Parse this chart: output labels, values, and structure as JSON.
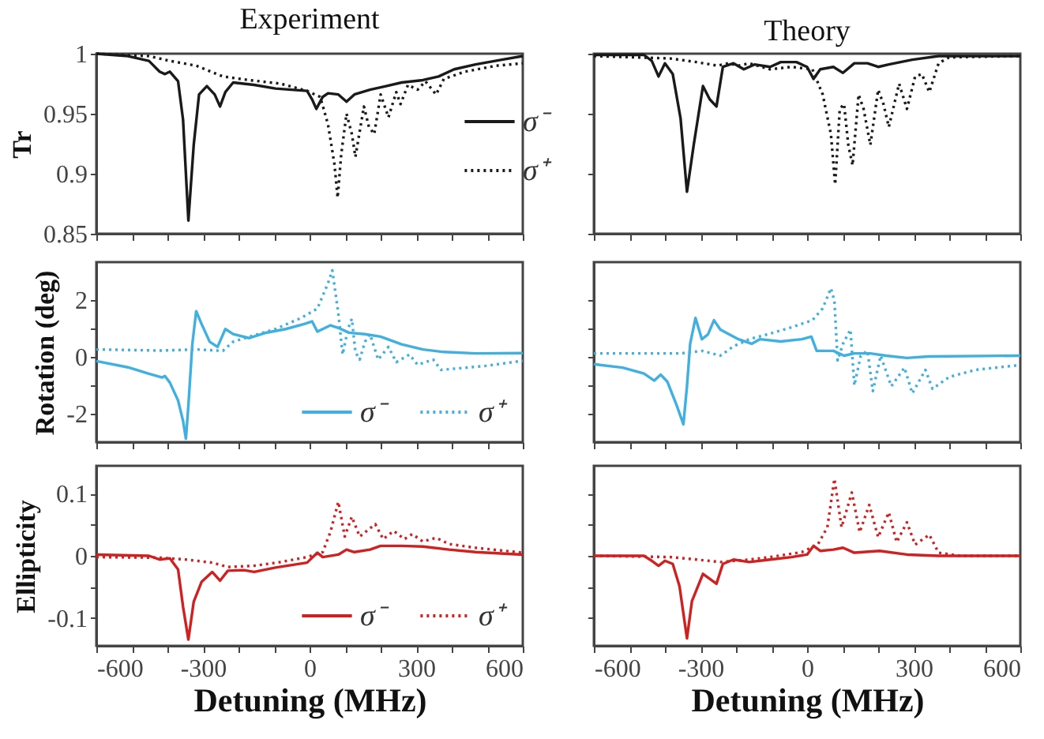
{
  "chart_data": [
    {
      "type": "line",
      "title": "Experiment",
      "ylabel": "Tr",
      "xlim": [
        -600,
        600
      ],
      "xticks": [
        -600,
        {
          "value": -500,
          "label": null
        },
        {
          "value": -400,
          "label": null
        },
        -300,
        {
          "value": -200,
          "label": null
        },
        {
          "value": -100,
          "label": null
        },
        0,
        {
          "value": 100,
          "label": null
        },
        {
          "value": 200,
          "label": null
        },
        300,
        {
          "value": 400,
          "label": null
        },
        {
          "value": 500,
          "label": null
        },
        600
      ],
      "ylim": [
        0.85,
        1
      ],
      "yticks": [
        0.85,
        0.9,
        0.95,
        1
      ],
      "tick_labels": "y",
      "legend": "right",
      "series": [
        {
          "name": "σ⁻",
          "color": "#1a1a1a",
          "line_style": "solid",
          "x": [
            -600,
            -511,
            -452,
            -422,
            -407,
            -393,
            -370,
            -356,
            -341,
            -326,
            -311,
            -289,
            -267,
            -252,
            -237,
            -215,
            -156,
            -96,
            -7,
            7,
            19,
            37,
            52,
            81,
            104,
            126,
            170,
            215,
            259,
            319,
            363,
            407,
            467,
            541,
            600
          ],
          "values": [
            1.0,
            0.998,
            0.994,
            0.985,
            0.983,
            0.985,
            0.977,
            0.945,
            0.861,
            0.924,
            0.966,
            0.973,
            0.966,
            0.956,
            0.968,
            0.976,
            0.974,
            0.971,
            0.969,
            0.962,
            0.954,
            0.964,
            0.967,
            0.966,
            0.96,
            0.966,
            0.97,
            0.973,
            0.976,
            0.978,
            0.981,
            0.987,
            0.991,
            0.995,
            0.998
          ]
        },
        {
          "name": "σ⁺",
          "color": "#1a1a1a",
          "line_style": "dotted",
          "x": [
            -600,
            -452,
            -393,
            -319,
            -244,
            -170,
            -81,
            -7,
            30,
            52,
            70,
            79,
            89,
            104,
            119,
            129,
            153,
            167,
            182,
            200,
            222,
            244,
            256,
            277,
            304,
            326,
            356,
            378,
            437,
            526,
            600
          ],
          "values": [
            1.0,
            0.998,
            0.994,
            0.99,
            0.981,
            0.978,
            0.975,
            0.969,
            0.964,
            0.941,
            0.908,
            0.88,
            0.916,
            0.95,
            0.933,
            0.914,
            0.956,
            0.939,
            0.933,
            0.966,
            0.947,
            0.968,
            0.958,
            0.974,
            0.97,
            0.977,
            0.966,
            0.979,
            0.985,
            0.99,
            0.992
          ]
        }
      ]
    },
    {
      "type": "line",
      "title": "Theory",
      "xlim": [
        -600,
        600
      ],
      "xticks": [
        -600,
        {
          "value": -500,
          "label": null
        },
        {
          "value": -400,
          "label": null
        },
        -300,
        {
          "value": -200,
          "label": null
        },
        {
          "value": -100,
          "label": null
        },
        0,
        {
          "value": 100,
          "label": null
        },
        {
          "value": 200,
          "label": null
        },
        300,
        {
          "value": 400,
          "label": null
        },
        {
          "value": 500,
          "label": null
        },
        600
      ],
      "ylim": [
        0.85,
        1
      ],
      "yticks": [
        0.85,
        0.9,
        0.95,
        1
      ],
      "tick_labels": false,
      "series": [
        {
          "color": "#1a1a1a",
          "line_style": "solid",
          "x": [
            -600,
            -459,
            -437,
            -418,
            -400,
            -378,
            -356,
            -338,
            -319,
            -293,
            -274,
            -255,
            -237,
            -207,
            -178,
            -148,
            -104,
            -74,
            -30,
            0,
            18,
            37,
            74,
            101,
            133,
            170,
            200,
            230,
            296,
            370,
            600
          ],
          "values": [
            0.999,
            0.999,
            0.994,
            0.981,
            0.992,
            0.983,
            0.946,
            0.885,
            0.924,
            0.973,
            0.962,
            0.956,
            0.989,
            0.992,
            0.987,
            0.991,
            0.989,
            0.993,
            0.993,
            0.989,
            0.979,
            0.987,
            0.989,
            0.984,
            0.992,
            0.992,
            0.989,
            0.991,
            0.995,
            0.998,
            0.998
          ]
        },
        {
          "color": "#1a1a1a",
          "line_style": "dotted",
          "x": [
            -600,
            -385,
            -311,
            -252,
            -222,
            -193,
            -163,
            -104,
            -44,
            15,
            44,
            67,
            79,
            92,
            104,
            116,
            128,
            145,
            159,
            178,
            200,
            215,
            230,
            259,
            281,
            304,
            323,
            344,
            370,
            400,
            600
          ],
          "values": [
            0.998,
            0.996,
            0.993,
            0.99,
            0.992,
            0.99,
            0.992,
            0.987,
            0.989,
            0.987,
            0.966,
            0.933,
            0.891,
            0.954,
            0.958,
            0.924,
            0.907,
            0.966,
            0.954,
            0.924,
            0.97,
            0.958,
            0.939,
            0.975,
            0.954,
            0.981,
            0.983,
            0.968,
            0.992,
            0.997,
            0.998
          ]
        }
      ]
    },
    {
      "type": "line",
      "ylabel": "Rotation (deg)",
      "xlim": [
        -600,
        600
      ],
      "xticks": [
        -600,
        {
          "value": -500,
          "label": null
        },
        {
          "value": -400,
          "label": null
        },
        -300,
        {
          "value": -200,
          "label": null
        },
        {
          "value": -100,
          "label": null
        },
        0,
        {
          "value": 100,
          "label": null
        },
        {
          "value": 200,
          "label": null
        },
        300,
        {
          "value": 400,
          "label": null
        },
        {
          "value": 500,
          "label": null
        },
        600
      ],
      "ylim": [
        -3,
        3.35
      ],
      "yticks": [
        -2,
        {
          "value": -1,
          "label": null
        },
        0,
        {
          "value": 1,
          "label": null
        },
        2
      ],
      "tick_labels": "y",
      "legend": "bottom right",
      "series": [
        {
          "name": "σ⁻",
          "color": "#3fb0e0",
          "line_style": "solid",
          "x": [
            -600,
            -511,
            -452,
            -415,
            -407,
            -393,
            -370,
            -356,
            -348,
            -341,
            -330,
            -319,
            -304,
            -281,
            -259,
            -237,
            -215,
            -170,
            -126,
            -67,
            -15,
            7,
            22,
            37,
            59,
            81,
            111,
            156,
            200,
            259,
            319,
            378,
            467,
            600
          ],
          "values": [
            -0.14,
            -0.36,
            -0.59,
            -0.72,
            -0.67,
            -0.9,
            -1.53,
            -2.25,
            -2.88,
            -1.71,
            0.45,
            1.62,
            1.17,
            0.54,
            0.36,
            0.99,
            0.81,
            0.67,
            0.85,
            0.99,
            1.17,
            1.26,
            0.9,
            0.99,
            1.12,
            1.03,
            0.86,
            0.81,
            0.72,
            0.45,
            0.27,
            0.18,
            0.13,
            0.14
          ]
        },
        {
          "name": "σ⁺",
          "color": "#3fb0e0",
          "line_style": "dotted",
          "x": [
            -600,
            -422,
            -319,
            -244,
            -215,
            -170,
            -96,
            -22,
            22,
            52,
            64,
            81,
            93,
            108,
            119,
            129,
            141,
            156,
            170,
            193,
            222,
            244,
            281,
            304,
            348,
            370,
            407,
            496,
            600
          ],
          "values": [
            0.27,
            0.23,
            0.27,
            0.22,
            0.54,
            0.72,
            0.99,
            1.39,
            1.71,
            2.61,
            3.06,
            1.53,
            0.09,
            0.99,
            1.35,
            0.18,
            -0.09,
            0.54,
            0.81,
            -0.09,
            0.36,
            -0.18,
            0.09,
            -0.27,
            -0.09,
            -0.45,
            -0.41,
            -0.31,
            -0.13
          ]
        }
      ]
    },
    {
      "type": "line",
      "xlim": [
        -600,
        600
      ],
      "xticks": [
        -600,
        {
          "value": -500,
          "label": null
        },
        {
          "value": -400,
          "label": null
        },
        -300,
        {
          "value": -200,
          "label": null
        },
        {
          "value": -100,
          "label": null
        },
        0,
        {
          "value": 100,
          "label": null
        },
        {
          "value": 200,
          "label": null
        },
        300,
        {
          "value": 400,
          "label": null
        },
        {
          "value": 500,
          "label": null
        },
        600
      ],
      "ylim": [
        -3,
        3.35
      ],
      "yticks": [
        -2,
        {
          "value": -1,
          "label": null
        },
        0,
        {
          "value": 1,
          "label": null
        },
        2
      ],
      "tick_labels": false,
      "series": [
        {
          "color": "#3fb0e0",
          "line_style": "solid",
          "x": [
            -600,
            -519,
            -459,
            -430,
            -412,
            -393,
            -367,
            -348,
            -338,
            -329,
            -314,
            -296,
            -279,
            -262,
            -244,
            -193,
            -156,
            -133,
            -74,
            -15,
            12,
            27,
            74,
            104,
            133,
            178,
            222,
            281,
            341,
            600
          ],
          "values": [
            -0.25,
            -0.37,
            -0.58,
            -0.83,
            -0.62,
            -0.87,
            -1.7,
            -2.37,
            -1.03,
            0.47,
            1.38,
            0.63,
            0.8,
            1.3,
            0.97,
            0.63,
            0.47,
            0.63,
            0.55,
            0.63,
            0.72,
            0.22,
            0.22,
            0.05,
            0.13,
            0.13,
            0.05,
            -0.03,
            0.02,
            0.05
          ]
        },
        {
          "color": "#3fb0e0",
          "line_style": "dotted",
          "x": [
            -600,
            -356,
            -296,
            -244,
            -207,
            -163,
            -104,
            -44,
            15,
            44,
            67,
            77,
            86,
            101,
            122,
            133,
            151,
            170,
            185,
            207,
            237,
            274,
            296,
            333,
            353,
            400,
            474,
            600
          ],
          "values": [
            0.13,
            0.13,
            0.22,
            0.05,
            0.38,
            0.63,
            0.83,
            1.05,
            1.3,
            1.72,
            2.43,
            1.97,
            -0.12,
            0.47,
            0.97,
            -1.0,
            0.05,
            0.22,
            -1.2,
            0.05,
            -1.03,
            -0.37,
            -1.28,
            -0.45,
            -1.12,
            -0.7,
            -0.45,
            -0.28
          ]
        }
      ]
    },
    {
      "type": "line",
      "ylabel": "Ellipticity",
      "xlabel": "Detuning (MHz)",
      "xlim": [
        -600,
        600
      ],
      "xticks": [
        -600,
        {
          "value": -500,
          "label": null
        },
        {
          "value": -400,
          "label": null
        },
        -300,
        {
          "value": -200,
          "label": null
        },
        {
          "value": -100,
          "label": null
        },
        0,
        {
          "value": 100,
          "label": null
        },
        {
          "value": 200,
          "label": null
        },
        300,
        {
          "value": 400,
          "label": null
        },
        {
          "value": 500,
          "label": null
        },
        600
      ],
      "ylim": [
        -0.145,
        0.145
      ],
      "yticks": [
        -0.1,
        {
          "value": -0.05,
          "label": null
        },
        0,
        {
          "value": 0.05,
          "label": null
        },
        0.1
      ],
      "legend": "bottom right",
      "series": [
        {
          "name": "σ⁻",
          "color": "#d02020",
          "line_style": "solid",
          "x": [
            -600,
            -452,
            -422,
            -393,
            -370,
            -356,
            -341,
            -326,
            -304,
            -274,
            -252,
            -230,
            -185,
            -156,
            -96,
            -7,
            22,
            37,
            81,
            104,
            126,
            170,
            200,
            259,
            319,
            393,
            467,
            600
          ],
          "values": [
            0.002,
            0,
            -0.006,
            -0.004,
            -0.022,
            -0.082,
            -0.135,
            -0.074,
            -0.042,
            -0.026,
            -0.04,
            -0.024,
            -0.023,
            -0.026,
            -0.019,
            -0.011,
            0.005,
            -0.002,
            0.002,
            0.01,
            0.006,
            0.01,
            0.016,
            0.016,
            0.015,
            0.01,
            0.006,
            0.002
          ]
        },
        {
          "name": "σ⁺",
          "color": "#d02020",
          "line_style": "dotted",
          "x": [
            -600,
            -422,
            -348,
            -274,
            -230,
            -156,
            -81,
            -7,
            37,
            59,
            81,
            99,
            119,
            141,
            185,
            207,
            237,
            267,
            289,
            319,
            356,
            393,
            467,
            600
          ],
          "values": [
            -0.002,
            -0.003,
            -0.006,
            -0.011,
            -0.018,
            -0.016,
            -0.01,
            -0.002,
            0.006,
            0.039,
            0.087,
            0.031,
            0.063,
            0.031,
            0.051,
            0.027,
            0.04,
            0.027,
            0.035,
            0.023,
            0.029,
            0.019,
            0.013,
            0.005
          ]
        }
      ]
    },
    {
      "type": "line",
      "xlabel": "Detuning (MHz)",
      "xlim": [
        -600,
        600
      ],
      "xticks": [
        -600,
        {
          "value": -500,
          "label": null
        },
        {
          "value": -400,
          "label": null
        },
        -300,
        {
          "value": -200,
          "label": null
        },
        {
          "value": -100,
          "label": null
        },
        0,
        {
          "value": 100,
          "label": null
        },
        {
          "value": 200,
          "label": null
        },
        300,
        {
          "value": 400,
          "label": null
        },
        {
          "value": 500,
          "label": null
        },
        600
      ],
      "ylim": [
        -0.145,
        0.145
      ],
      "yticks": [
        -0.1,
        {
          "value": -0.05,
          "label": null
        },
        0,
        {
          "value": 0.05,
          "label": null
        },
        0.1
      ],
      "tick_labels": "x",
      "series": [
        {
          "color": "#d02020",
          "line_style": "solid",
          "x": [
            -600,
            -459,
            -437,
            -418,
            -400,
            -378,
            -359,
            -338,
            -324,
            -293,
            -274,
            -255,
            -237,
            -207,
            -163,
            -104,
            -44,
            0,
            18,
            37,
            74,
            101,
            133,
            204,
            281,
            370,
            600
          ],
          "values": [
            0,
            0,
            -0.008,
            -0.016,
            -0.008,
            -0.013,
            -0.049,
            -0.133,
            -0.073,
            -0.029,
            -0.037,
            -0.045,
            -0.013,
            -0.006,
            -0.01,
            -0.006,
            -0.002,
            0.002,
            0.016,
            0.008,
            0.01,
            0.013,
            0.005,
            0.008,
            0.002,
            0,
            0
          ]
        },
        {
          "color": "#d02020",
          "line_style": "dotted",
          "x": [
            -600,
            -385,
            -311,
            -244,
            -163,
            -104,
            -15,
            30,
            57,
            77,
            97,
            126,
            148,
            175,
            200,
            230,
            252,
            281,
            304,
            344,
            370,
            430,
            600
          ],
          "values": [
            0,
            -0.002,
            -0.006,
            -0.01,
            -0.006,
            -0.002,
            0.006,
            0.018,
            0.046,
            0.124,
            0.046,
            0.102,
            0.038,
            0.082,
            0.03,
            0.07,
            0.022,
            0.054,
            0.018,
            0.034,
            0.005,
            0,
            0
          ]
        }
      ]
    }
  ]
}
